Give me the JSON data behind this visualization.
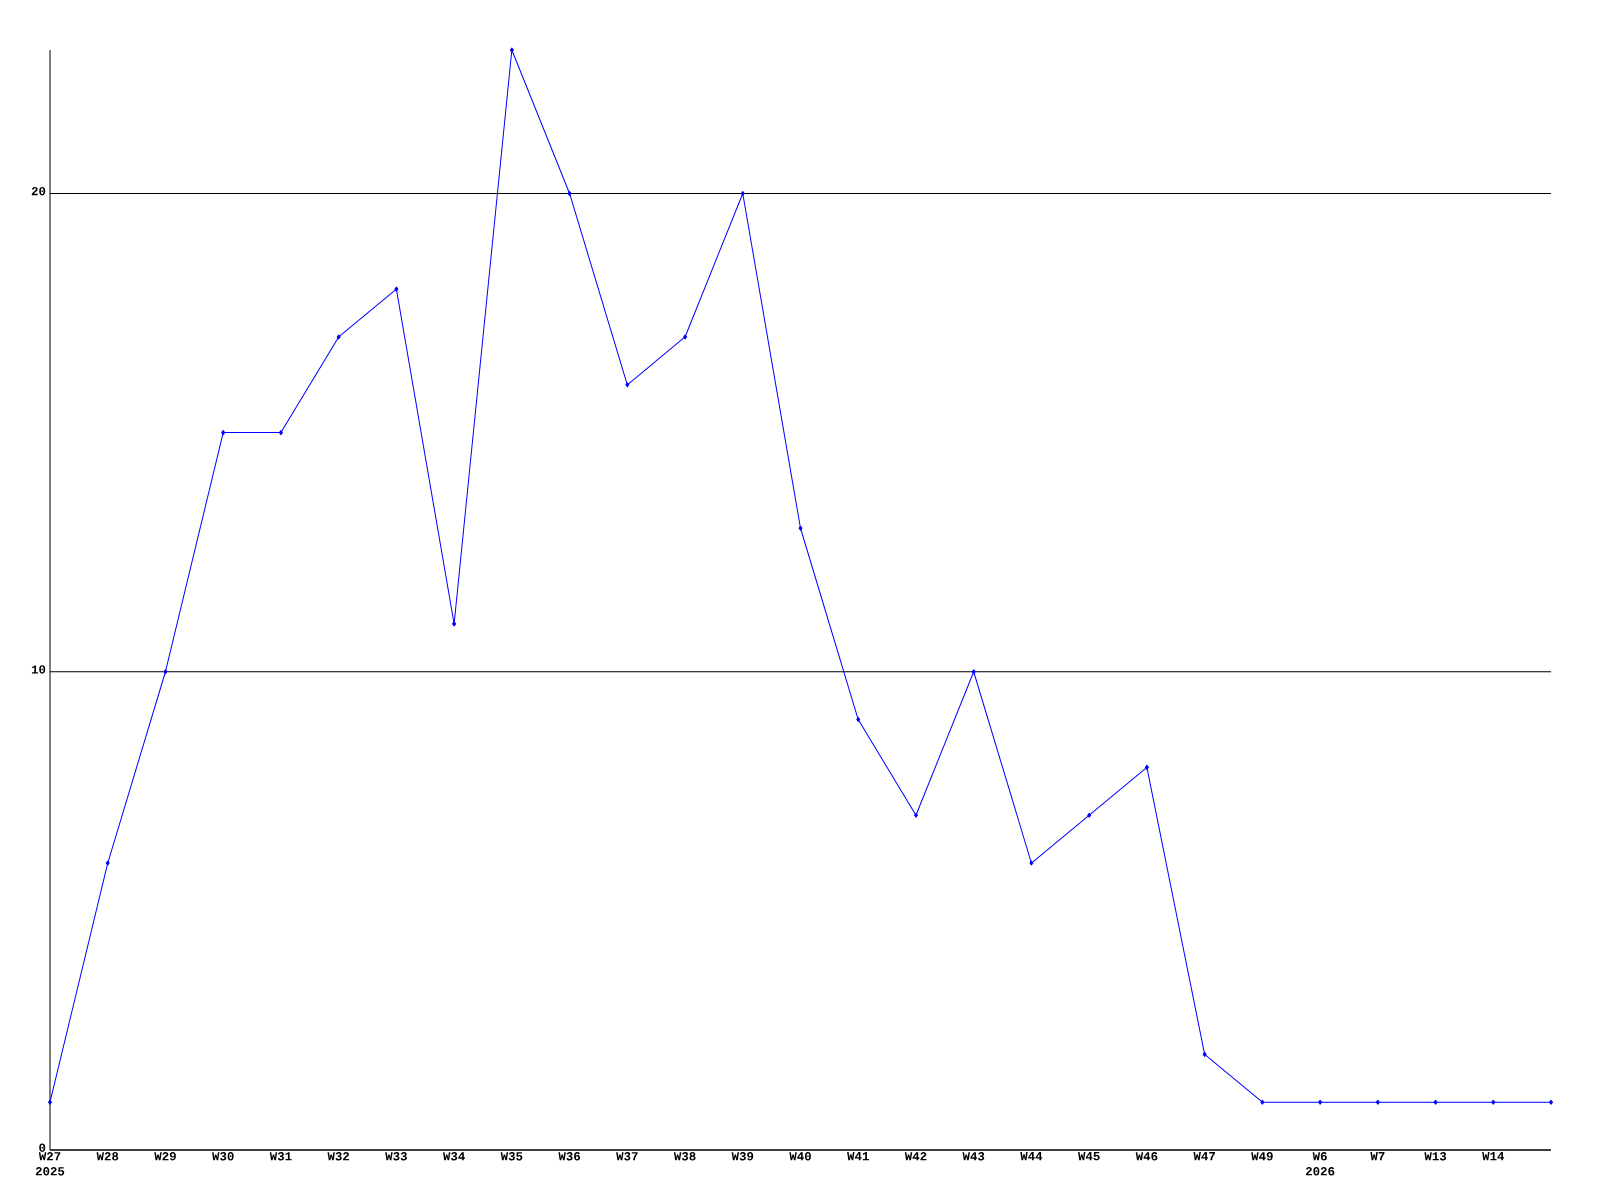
{
  "chart_data": {
    "type": "line",
    "categories": [
      "W27 2025",
      "W28",
      "W29",
      "W30",
      "W31",
      "W32",
      "W33",
      "W34",
      "W35",
      "W36",
      "W37",
      "W38",
      "W39",
      "W40",
      "W41",
      "W42",
      "W43",
      "W44",
      "W45",
      "W46",
      "W47",
      "W49",
      "W6 2026",
      "W7",
      "W13",
      "W14",
      null
    ],
    "values": [
      1,
      6,
      10,
      15,
      15,
      17,
      18,
      11,
      23,
      20,
      16,
      17,
      20,
      13,
      9,
      7,
      10,
      6,
      7,
      8,
      2,
      1,
      1,
      1,
      1,
      1,
      1
    ],
    "color": "#0000ff",
    "marker": "diamond",
    "ylim": [
      0,
      23
    ],
    "yticks": [
      0,
      10,
      20
    ],
    "grid": "y"
  }
}
